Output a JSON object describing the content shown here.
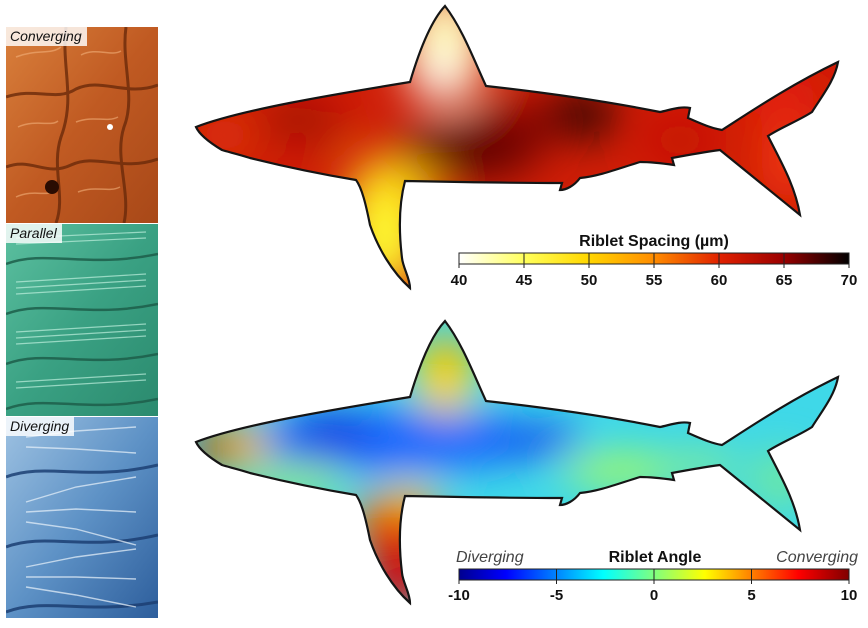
{
  "sem_panels": [
    {
      "label": "Converging",
      "color": "#c8652a"
    },
    {
      "label": "Parallel",
      "color": "#3aa88a"
    },
    {
      "label": "Diverging",
      "color": "#5a8fc2"
    }
  ],
  "spacing_map": {
    "title": "Riblet Spacing (µm)",
    "ticks": [
      "40",
      "45",
      "50",
      "55",
      "60",
      "65",
      "70"
    ],
    "colormap": "hot-reversed"
  },
  "angle_map": {
    "title": "Riblet Angle",
    "left_label": "Diverging",
    "right_label": "Converging",
    "ticks": [
      "-10",
      "-5",
      "0",
      "5",
      "10"
    ],
    "colormap": "jet"
  }
}
